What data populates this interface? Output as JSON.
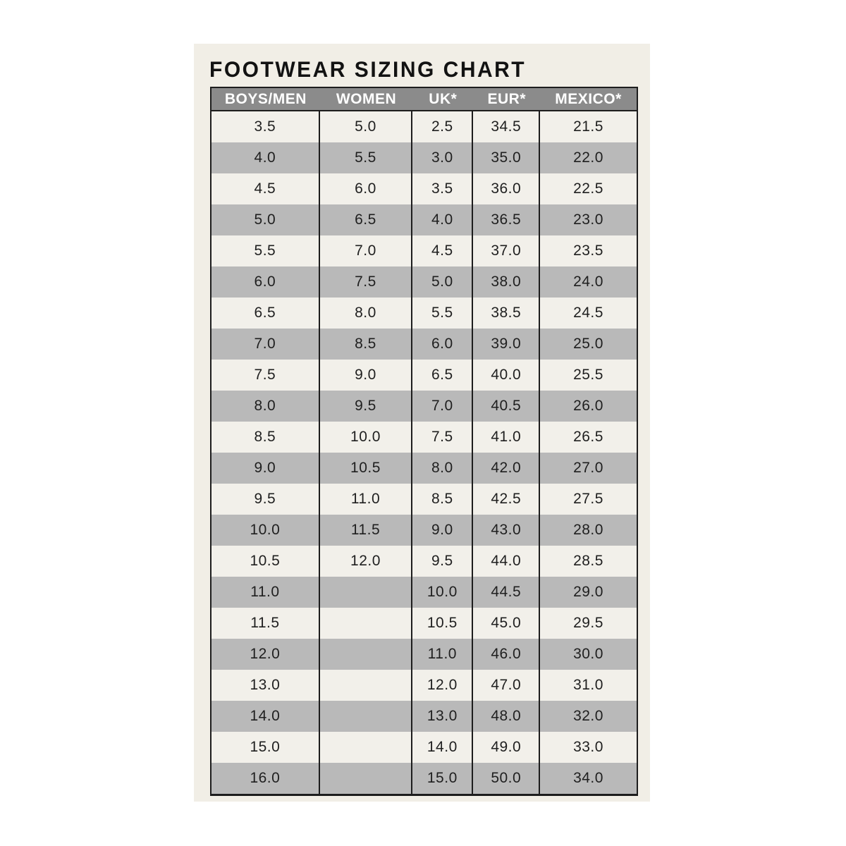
{
  "title": "FOOTWEAR SIZING CHART",
  "chart_data": {
    "type": "table",
    "title": "FOOTWEAR SIZING CHART",
    "columns": [
      "BOYS/MEN",
      "WOMEN",
      "UK*",
      "EUR*",
      "MEXICO*"
    ],
    "rows": [
      [
        "3.5",
        "5.0",
        "2.5",
        "34.5",
        "21.5"
      ],
      [
        "4.0",
        "5.5",
        "3.0",
        "35.0",
        "22.0"
      ],
      [
        "4.5",
        "6.0",
        "3.5",
        "36.0",
        "22.5"
      ],
      [
        "5.0",
        "6.5",
        "4.0",
        "36.5",
        "23.0"
      ],
      [
        "5.5",
        "7.0",
        "4.5",
        "37.0",
        "23.5"
      ],
      [
        "6.0",
        "7.5",
        "5.0",
        "38.0",
        "24.0"
      ],
      [
        "6.5",
        "8.0",
        "5.5",
        "38.5",
        "24.5"
      ],
      [
        "7.0",
        "8.5",
        "6.0",
        "39.0",
        "25.0"
      ],
      [
        "7.5",
        "9.0",
        "6.5",
        "40.0",
        "25.5"
      ],
      [
        "8.0",
        "9.5",
        "7.0",
        "40.5",
        "26.0"
      ],
      [
        "8.5",
        "10.0",
        "7.5",
        "41.0",
        "26.5"
      ],
      [
        "9.0",
        "10.5",
        "8.0",
        "42.0",
        "27.0"
      ],
      [
        "9.5",
        "11.0",
        "8.5",
        "42.5",
        "27.5"
      ],
      [
        "10.0",
        "11.5",
        "9.0",
        "43.0",
        "28.0"
      ],
      [
        "10.5",
        "12.0",
        "9.5",
        "44.0",
        "28.5"
      ],
      [
        "11.0",
        "",
        "10.0",
        "44.5",
        "29.0"
      ],
      [
        "11.5",
        "",
        "10.5",
        "45.0",
        "29.5"
      ],
      [
        "12.0",
        "",
        "11.0",
        "46.0",
        "30.0"
      ],
      [
        "13.0",
        "",
        "12.0",
        "47.0",
        "31.0"
      ],
      [
        "14.0",
        "",
        "13.0",
        "48.0",
        "32.0"
      ],
      [
        "15.0",
        "",
        "14.0",
        "49.0",
        "33.0"
      ],
      [
        "16.0",
        "",
        "15.0",
        "50.0",
        "34.0"
      ]
    ],
    "layout": {
      "striped_rows": true,
      "stripe_pattern": "even rows gray"
    }
  },
  "colors": {
    "page_background": "#ffffff",
    "card_background": "#f1eee6",
    "header_background": "#8b8b8b",
    "stripe_background": "#b9b9b9",
    "row_background": "#f2f0ea",
    "border": "#1d1d1d",
    "header_text": "#ffffff",
    "cell_text": "#1f1f1f",
    "title_text": "#121212"
  }
}
